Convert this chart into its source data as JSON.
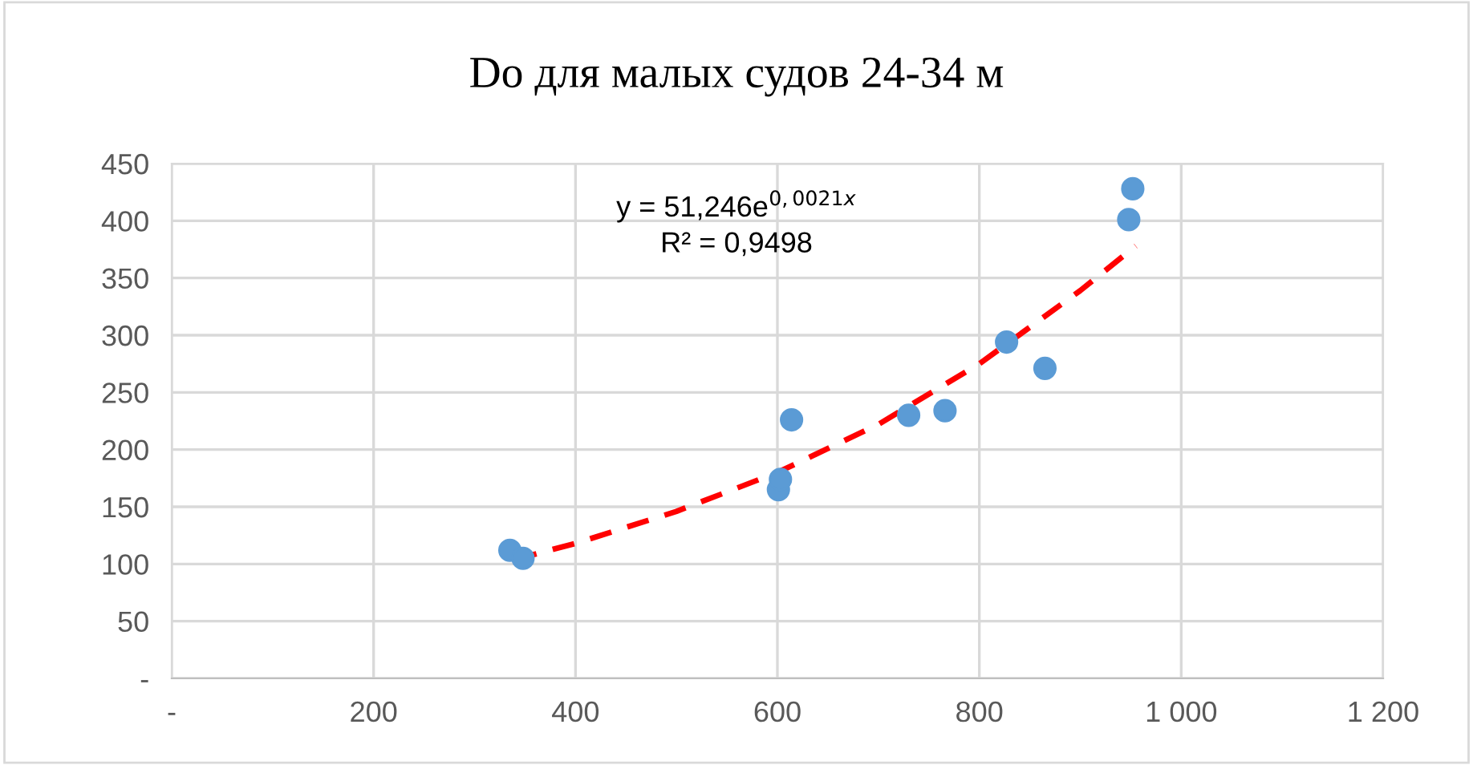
{
  "chart_data": {
    "type": "scatter",
    "title": "Do для малых судов 24-34 м",
    "series": [
      {
        "color": "#5b9bd5",
        "marker": "circle",
        "x": [
          335,
          348,
          601,
          603,
          614,
          730,
          766,
          827,
          865,
          948,
          952
        ],
        "values": [
          112,
          105,
          165,
          174,
          226,
          230,
          234,
          294,
          271,
          401,
          428
        ]
      },
      {
        "type": "line",
        "color": "#ff0000",
        "line_style": "dashed",
        "marker": "none",
        "x": [
          340,
          400,
          500,
          600,
          700,
          800,
          900,
          955
        ],
        "values": [
          104,
          118,
          146,
          180,
          222,
          275,
          339,
          378
        ]
      }
    ],
    "annotations": [
      "y = 51,246e$^{0,0021x}$",
      "R² = 0,9498"
    ],
    "xlim": [
      0,
      1200
    ],
    "xticks": [
      {
        "value": 0,
        "label": "-"
      },
      200,
      400,
      600,
      800,
      {
        "value": 1000,
        "label": "1 000"
      },
      {
        "value": 1200,
        "label": "1 200"
      }
    ],
    "ylim": [
      0,
      450
    ],
    "yticks": [
      {
        "value": 0,
        "label": "-"
      },
      50,
      100,
      150,
      200,
      250,
      300,
      350,
      400,
      450
    ],
    "grid": true,
    "legend": false
  }
}
